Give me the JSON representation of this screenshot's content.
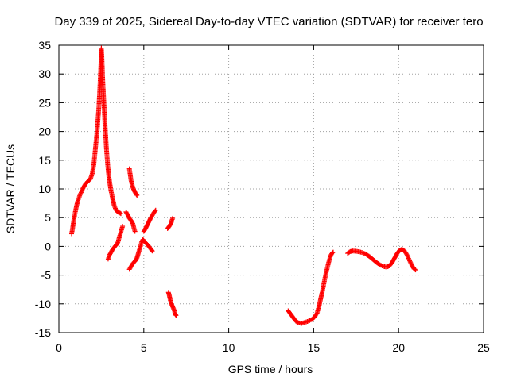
{
  "chart_data": {
    "type": "scatter",
    "title": "Day 339 of 2025, Sidereal Day-to-day VTEC variation (SDTVAR) for receiver tero",
    "xlabel": "GPS time / hours",
    "ylabel": "SDTVAR / TECUs",
    "xlim": [
      0,
      25
    ],
    "ylim": [
      -15,
      35
    ],
    "xticks": [
      0,
      5,
      10,
      15,
      20,
      25
    ],
    "yticks": [
      -15,
      -10,
      -5,
      0,
      5,
      10,
      15,
      20,
      25,
      30,
      35
    ],
    "grid": true,
    "marker": "+",
    "color": "#ff0000",
    "series": [
      {
        "name": "SDTVAR",
        "segments": [
          [
            [
              0.75,
              2.2
            ],
            [
              0.8,
              3
            ],
            [
              0.9,
              5
            ],
            [
              1.0,
              6.5
            ],
            [
              1.1,
              7.8
            ],
            [
              1.25,
              9
            ],
            [
              1.4,
              10
            ],
            [
              1.55,
              10.8
            ],
            [
              1.7,
              11.3
            ],
            [
              1.85,
              11.7
            ],
            [
              1.95,
              12.5
            ],
            [
              2.05,
              14
            ],
            [
              2.15,
              17
            ],
            [
              2.25,
              20
            ],
            [
              2.35,
              24
            ],
            [
              2.42,
              28
            ],
            [
              2.48,
              32
            ],
            [
              2.5,
              34.5
            ],
            [
              2.53,
              33
            ],
            [
              2.58,
              29
            ],
            [
              2.65,
              25
            ],
            [
              2.72,
              21
            ],
            [
              2.8,
              17
            ],
            [
              2.88,
              14
            ],
            [
              2.95,
              12
            ],
            [
              3.05,
              10
            ],
            [
              3.15,
              8.5
            ],
            [
              3.25,
              7.2
            ],
            [
              3.35,
              6.4
            ],
            [
              3.45,
              6.0
            ],
            [
              3.55,
              5.9
            ],
            [
              3.65,
              5.7
            ]
          ],
          [
            [
              2.9,
              -2.2
            ],
            [
              3.0,
              -1.4
            ],
            [
              3.15,
              -0.6
            ],
            [
              3.3,
              0
            ],
            [
              3.45,
              0.5
            ],
            [
              3.55,
              1.5
            ],
            [
              3.65,
              2.5
            ],
            [
              3.75,
              3.5
            ]
          ],
          [
            [
              3.95,
              6.0
            ],
            [
              4.05,
              5.5
            ],
            [
              4.15,
              4.9
            ],
            [
              4.25,
              4.5
            ],
            [
              4.35,
              4.0
            ],
            [
              4.42,
              3.2
            ],
            [
              4.48,
              2.6
            ]
          ],
          [
            [
              4.15,
              13.5
            ],
            [
              4.2,
              12.5
            ],
            [
              4.25,
              11.5
            ],
            [
              4.35,
              10.3
            ],
            [
              4.45,
              9.6
            ],
            [
              4.55,
              9.1
            ],
            [
              4.6,
              8.9
            ]
          ],
          [
            [
              4.15,
              -4.0
            ],
            [
              4.25,
              -3.5
            ],
            [
              4.35,
              -3.0
            ],
            [
              4.5,
              -2.5
            ],
            [
              4.6,
              -2.0
            ],
            [
              4.65,
              -1.5
            ],
            [
              4.72,
              -0.8
            ],
            [
              4.8,
              0
            ],
            [
              4.88,
              0.8
            ],
            [
              4.95,
              1.2
            ],
            [
              5.05,
              0.8
            ],
            [
              5.15,
              0.5
            ],
            [
              5.25,
              0.2
            ],
            [
              5.35,
              -0.2
            ],
            [
              5.45,
              -0.6
            ],
            [
              5.5,
              -0.8
            ]
          ],
          [
            [
              5.0,
              2.6
            ],
            [
              5.1,
              3.1
            ],
            [
              5.2,
              3.7
            ],
            [
              5.3,
              4.3
            ],
            [
              5.4,
              4.9
            ],
            [
              5.5,
              5.4
            ],
            [
              5.6,
              5.9
            ],
            [
              5.7,
              6.3
            ]
          ],
          [
            [
              6.4,
              3.1
            ],
            [
              6.5,
              3.5
            ],
            [
              6.6,
              4.0
            ],
            [
              6.65,
              4.5
            ],
            [
              6.7,
              4.9
            ]
          ],
          [
            [
              6.45,
              -8.0
            ],
            [
              6.5,
              -8.5
            ],
            [
              6.55,
              -9.2
            ],
            [
              6.6,
              -9.8
            ],
            [
              6.7,
              -10.5
            ],
            [
              6.8,
              -11.2
            ],
            [
              6.85,
              -11.8
            ],
            [
              6.9,
              -12.0
            ]
          ],
          [
            [
              13.5,
              -11.2
            ],
            [
              13.65,
              -11.8
            ],
            [
              13.8,
              -12.4
            ],
            [
              13.95,
              -13.0
            ],
            [
              14.1,
              -13.3
            ],
            [
              14.3,
              -13.4
            ],
            [
              14.5,
              -13.2
            ],
            [
              14.7,
              -13.0
            ],
            [
              14.9,
              -12.7
            ],
            [
              15.05,
              -12.3
            ],
            [
              15.2,
              -11.6
            ],
            [
              15.3,
              -10.6
            ],
            [
              15.4,
              -9.3
            ],
            [
              15.5,
              -8.0
            ],
            [
              15.6,
              -6.5
            ],
            [
              15.7,
              -5.0
            ],
            [
              15.8,
              -3.8
            ],
            [
              15.9,
              -2.6
            ],
            [
              16.0,
              -1.6
            ],
            [
              16.1,
              -1.1
            ],
            [
              16.15,
              -1.0
            ]
          ],
          [
            [
              17.0,
              -1.2
            ],
            [
              17.15,
              -0.9
            ],
            [
              17.3,
              -0.8
            ],
            [
              17.5,
              -0.85
            ],
            [
              17.7,
              -0.95
            ],
            [
              17.9,
              -1.1
            ],
            [
              18.1,
              -1.4
            ],
            [
              18.3,
              -1.8
            ],
            [
              18.5,
              -2.3
            ],
            [
              18.7,
              -2.8
            ],
            [
              18.9,
              -3.2
            ],
            [
              19.1,
              -3.5
            ],
            [
              19.3,
              -3.6
            ],
            [
              19.45,
              -3.4
            ],
            [
              19.6,
              -2.9
            ],
            [
              19.75,
              -2.1
            ],
            [
              19.9,
              -1.3
            ],
            [
              20.05,
              -0.7
            ],
            [
              20.2,
              -0.5
            ],
            [
              20.35,
              -0.8
            ],
            [
              20.5,
              -1.5
            ],
            [
              20.65,
              -2.5
            ],
            [
              20.8,
              -3.4
            ],
            [
              20.9,
              -3.9
            ],
            [
              21.0,
              -4.1
            ]
          ]
        ]
      }
    ]
  }
}
